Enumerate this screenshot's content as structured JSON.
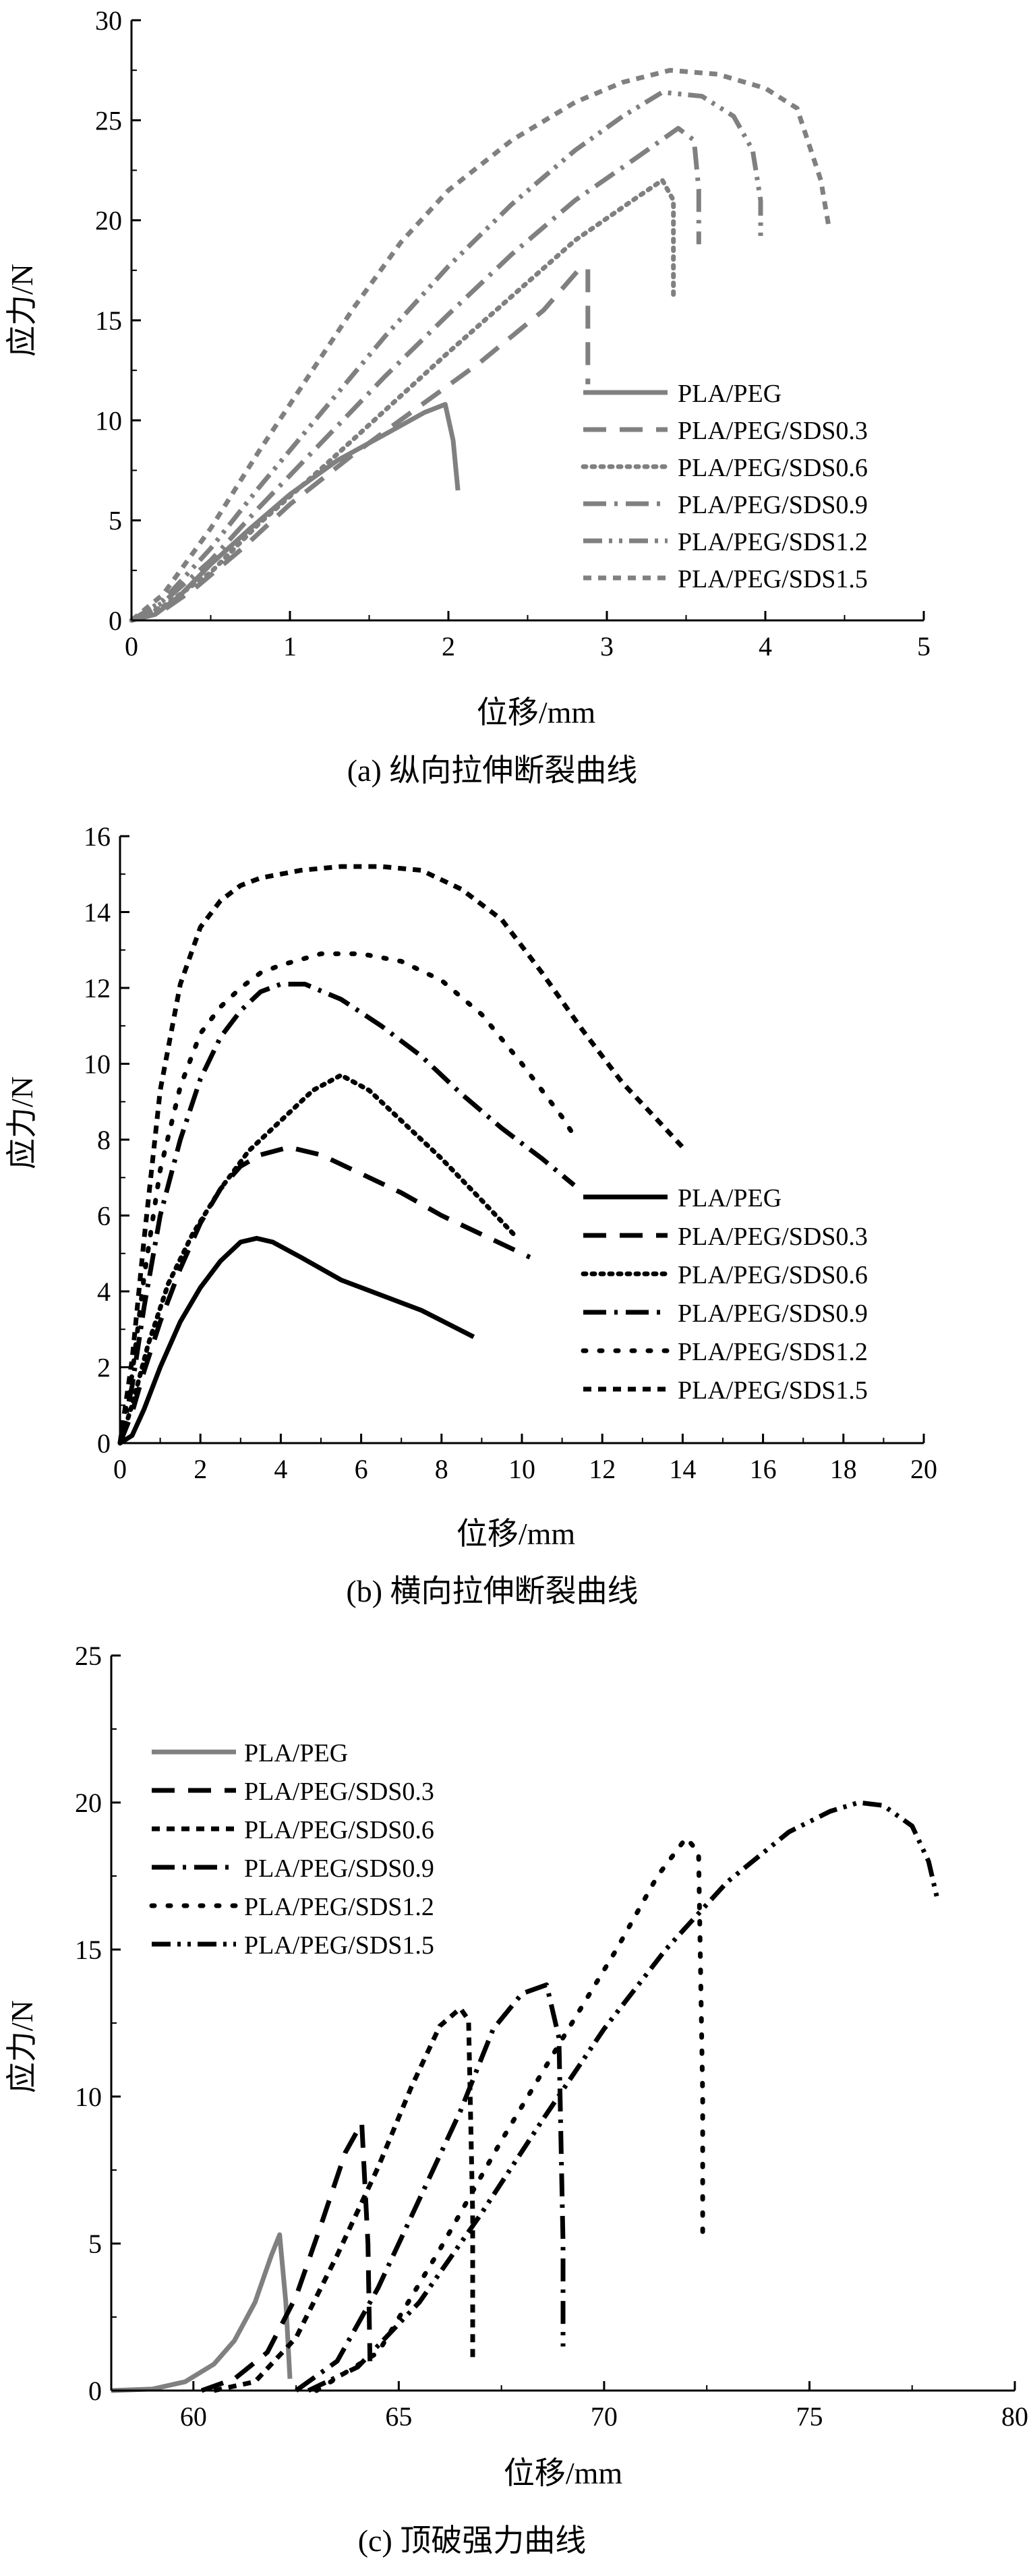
{
  "chart_data": [
    {
      "type": "line",
      "id": "a",
      "caption": "(a) 纵向拉伸断裂曲线",
      "xlabel": "位移/mm",
      "ylabel": "应力/N",
      "xlim": [
        0,
        5
      ],
      "ylim": [
        0,
        30
      ],
      "xticks": [
        0,
        1,
        2,
        3,
        4,
        5
      ],
      "yticks": [
        0,
        5,
        10,
        15,
        20,
        25,
        30
      ],
      "grid": false,
      "legend_position": "lower-right",
      "series": [
        {
          "name": "PLA/PEG",
          "color": "#808080",
          "dash": "solid",
          "x": [
            0,
            0.15,
            0.3,
            0.5,
            0.75,
            1.0,
            1.3,
            1.6,
            1.85,
            1.98,
            2.03,
            2.06
          ],
          "y": [
            0,
            0.3,
            1.2,
            2.8,
            4.6,
            6.3,
            8.0,
            9.3,
            10.4,
            10.8,
            9.0,
            6.5
          ]
        },
        {
          "name": "PLA/PEG/SDS0.3",
          "color": "#808080",
          "dash": "dash",
          "x": [
            0,
            0.2,
            0.4,
            0.7,
            1.0,
            1.4,
            1.8,
            2.2,
            2.6,
            2.83,
            2.88,
            2.88
          ],
          "y": [
            0,
            0.5,
            1.6,
            3.6,
            5.8,
            8.3,
            10.6,
            12.9,
            15.5,
            17.6,
            17.6,
            11.8
          ]
        },
        {
          "name": "PLA/PEG/SDS0.6",
          "color": "#808080",
          "dash": "dot",
          "x": [
            0,
            0.2,
            0.5,
            0.8,
            1.2,
            1.6,
            2.0,
            2.4,
            2.8,
            3.2,
            3.35,
            3.42,
            3.42
          ],
          "y": [
            0,
            0.7,
            2.4,
            4.8,
            7.6,
            10.5,
            13.4,
            16.2,
            19.0,
            21.2,
            22.0,
            21.0,
            16.2
          ]
        },
        {
          "name": "PLA/PEG/SDS0.9",
          "color": "#808080",
          "dash": "dashdot",
          "x": [
            0,
            0.2,
            0.5,
            0.8,
            1.2,
            1.6,
            2.0,
            2.4,
            2.8,
            3.2,
            3.45,
            3.55,
            3.58,
            3.58
          ],
          "y": [
            0,
            0.9,
            3.0,
            5.6,
            8.9,
            12.2,
            15.3,
            18.3,
            21.0,
            23.2,
            24.6,
            24.0,
            21.5,
            18.8
          ]
        },
        {
          "name": "PLA/PEG/SDS1.2",
          "color": "#808080",
          "dash": "dashdotdot",
          "x": [
            0,
            0.2,
            0.5,
            0.8,
            1.2,
            1.6,
            2.0,
            2.4,
            2.8,
            3.1,
            3.35,
            3.6,
            3.8,
            3.92,
            3.97,
            3.97
          ],
          "y": [
            0,
            1.0,
            3.6,
            6.6,
            10.4,
            14.2,
            17.7,
            20.8,
            23.5,
            25.2,
            26.4,
            26.2,
            25.2,
            23.5,
            21.0,
            19.0
          ]
        },
        {
          "name": "PLA/PEG/SDS1.5",
          "color": "#808080",
          "dash": "shortdash",
          "x": [
            0,
            0.2,
            0.5,
            0.8,
            1.1,
            1.4,
            1.7,
            2.0,
            2.4,
            2.8,
            3.1,
            3.4,
            3.7,
            4.0,
            4.2,
            4.35,
            4.4
          ],
          "y": [
            0,
            1.3,
            4.6,
            8.4,
            12.0,
            15.6,
            18.9,
            21.5,
            24.0,
            25.9,
            26.9,
            27.5,
            27.3,
            26.6,
            25.6,
            22.0,
            19.7
          ]
        }
      ]
    },
    {
      "type": "line",
      "id": "b",
      "caption": "(b) 横向拉伸断裂曲线",
      "xlabel": "位移/mm",
      "ylabel": "应力/N",
      "xlim": [
        0,
        20
      ],
      "ylim": [
        0,
        16
      ],
      "xticks": [
        0,
        2,
        4,
        6,
        8,
        10,
        12,
        14,
        16,
        18,
        20
      ],
      "yticks": [
        0,
        2,
        4,
        6,
        8,
        10,
        12,
        14,
        16
      ],
      "grid": false,
      "legend_position": "lower-right",
      "series": [
        {
          "name": "PLA/PEG",
          "color": "#000000",
          "dash": "solid",
          "x": [
            0,
            0.3,
            0.6,
            1.0,
            1.5,
            2.0,
            2.5,
            3.0,
            3.4,
            3.8,
            4.5,
            5.5,
            6.5,
            7.5,
            8.8
          ],
          "y": [
            0,
            0.2,
            0.9,
            2.0,
            3.2,
            4.1,
            4.8,
            5.3,
            5.4,
            5.3,
            4.9,
            4.3,
            3.9,
            3.5,
            2.8
          ]
        },
        {
          "name": "PLA/PEG/SDS0.3",
          "color": "#000000",
          "dash": "dash",
          "x": [
            0,
            0.3,
            0.6,
            1.0,
            1.5,
            2.0,
            2.5,
            3.0,
            3.5,
            4.2,
            5.0,
            6.0,
            7.0,
            8.0,
            9.0,
            10.2
          ],
          "y": [
            0,
            0.8,
            1.9,
            3.2,
            4.6,
            5.8,
            6.7,
            7.3,
            7.6,
            7.8,
            7.6,
            7.1,
            6.6,
            6.0,
            5.5,
            4.9
          ]
        },
        {
          "name": "PLA/PEG/SDS0.6",
          "color": "#000000",
          "dash": "dot",
          "x": [
            0,
            0.3,
            0.7,
            1.2,
            1.8,
            2.5,
            3.2,
            4.0,
            4.8,
            5.5,
            6.2,
            7.0,
            8.0,
            9.0,
            9.8
          ],
          "y": [
            0,
            1.0,
            2.6,
            4.2,
            5.5,
            6.7,
            7.7,
            8.5,
            9.3,
            9.7,
            9.3,
            8.5,
            7.5,
            6.4,
            5.5
          ]
        },
        {
          "name": "PLA/PEG/SDS0.9",
          "color": "#000000",
          "dash": "dashdot",
          "x": [
            0,
            0.3,
            0.6,
            1.0,
            1.5,
            2.0,
            2.5,
            3.0,
            3.5,
            4.0,
            4.6,
            5.5,
            6.5,
            7.5,
            8.5,
            9.5,
            10.5,
            11.3
          ],
          "y": [
            0,
            1.5,
            3.6,
            6.0,
            8.0,
            9.6,
            10.7,
            11.4,
            11.9,
            12.1,
            12.1,
            11.7,
            11.0,
            10.2,
            9.2,
            8.3,
            7.5,
            6.8
          ]
        },
        {
          "name": "PLA/PEG/SDS1.2",
          "color": "#000000",
          "dash": "dotsparse",
          "x": [
            0,
            0.3,
            0.6,
            1.0,
            1.5,
            2.0,
            2.5,
            3.0,
            3.5,
            4.0,
            5.0,
            6.0,
            7.0,
            8.0,
            9.0,
            10.0,
            11.0,
            11.3
          ],
          "y": [
            0,
            1.8,
            4.4,
            7.2,
            9.4,
            10.8,
            11.5,
            12.0,
            12.4,
            12.6,
            12.9,
            12.9,
            12.7,
            12.2,
            11.3,
            10.0,
            8.6,
            8.1
          ]
        },
        {
          "name": "PLA/PEG/SDS1.5",
          "color": "#000000",
          "dash": "shortdash",
          "x": [
            0,
            0.3,
            0.6,
            1.0,
            1.5,
            2.0,
            2.5,
            3.0,
            3.5,
            4.5,
            5.5,
            6.5,
            7.5,
            8.5,
            9.5,
            10.5,
            11.5,
            12.5,
            13.3,
            14.0
          ],
          "y": [
            0,
            2.2,
            5.4,
            9.3,
            12.1,
            13.6,
            14.3,
            14.7,
            14.9,
            15.1,
            15.2,
            15.2,
            15.1,
            14.6,
            13.8,
            12.4,
            10.9,
            9.5,
            8.6,
            7.8
          ]
        }
      ]
    },
    {
      "type": "line",
      "id": "c",
      "caption": "(c) 顶破强力曲线",
      "xlabel": "位移/mm",
      "ylabel": "应力/N",
      "xlim": [
        58,
        80
      ],
      "ylim": [
        0,
        25
      ],
      "xticks": [
        60,
        65,
        70,
        75,
        80
      ],
      "yticks": [
        0,
        5,
        10,
        15,
        20,
        25
      ],
      "grid": false,
      "legend_position": "upper-left",
      "series": [
        {
          "name": "PLA/PEG",
          "color": "#808080",
          "dash": "solid",
          "x": [
            58,
            59,
            59.8,
            60.5,
            61.0,
            61.5,
            61.9,
            62.1,
            62.25,
            62.35
          ],
          "y": [
            0,
            0.05,
            0.3,
            0.9,
            1.7,
            3.0,
            4.6,
            5.3,
            3.0,
            0.4
          ]
        },
        {
          "name": "PLA/PEG/SDS0.3",
          "color": "#000000",
          "dash": "dash",
          "x": [
            60.2,
            61.0,
            61.8,
            62.5,
            63.1,
            63.7,
            64.1,
            64.25,
            64.3
          ],
          "y": [
            0,
            0.4,
            1.3,
            3.2,
            5.6,
            8.1,
            9.1,
            5.0,
            1.0
          ]
        },
        {
          "name": "PLA/PEG/SDS0.6",
          "color": "#000000",
          "dash": "shortdash",
          "x": [
            60.5,
            61.5,
            62.5,
            63.5,
            64.5,
            65.3,
            66.0,
            66.5,
            66.7,
            66.8,
            66.8
          ],
          "y": [
            0,
            0.3,
            1.8,
            4.6,
            7.6,
            10.3,
            12.4,
            13.0,
            12.6,
            6.0,
            1.0
          ]
        },
        {
          "name": "PLA/PEG/SDS0.9",
          "color": "#000000",
          "dash": "dashdot",
          "x": [
            62.5,
            63.5,
            64.5,
            65.5,
            66.5,
            67.3,
            68.0,
            68.6,
            68.9,
            69.0,
            69.0
          ],
          "y": [
            0,
            1.0,
            3.5,
            6.5,
            9.5,
            12.3,
            13.5,
            13.8,
            12.0,
            5.0,
            1.5
          ]
        },
        {
          "name": "PLA/PEG/SDS1.2",
          "color": "#000000",
          "dash": "dotsparse",
          "x": [
            63.0,
            64.5,
            66.0,
            67.5,
            69.0,
            70.3,
            71.3,
            72.0,
            72.3,
            72.4,
            72.4
          ],
          "y": [
            0,
            1.3,
            4.8,
            8.5,
            12.0,
            15.0,
            17.5,
            18.8,
            18.3,
            10.0,
            5.0
          ]
        },
        {
          "name": "PLA/PEG/SDS1.5",
          "color": "#000000",
          "dash": "dashdotdot",
          "x": [
            62.8,
            64.0,
            65.5,
            67.0,
            68.5,
            70.0,
            71.5,
            73.0,
            74.5,
            75.5,
            76.2,
            76.8,
            77.5,
            77.9,
            78.1
          ],
          "y": [
            0,
            0.8,
            3.0,
            6.0,
            9.2,
            12.3,
            15.0,
            17.3,
            19.0,
            19.7,
            20.0,
            19.9,
            19.2,
            18.0,
            16.8
          ]
        }
      ]
    }
  ]
}
